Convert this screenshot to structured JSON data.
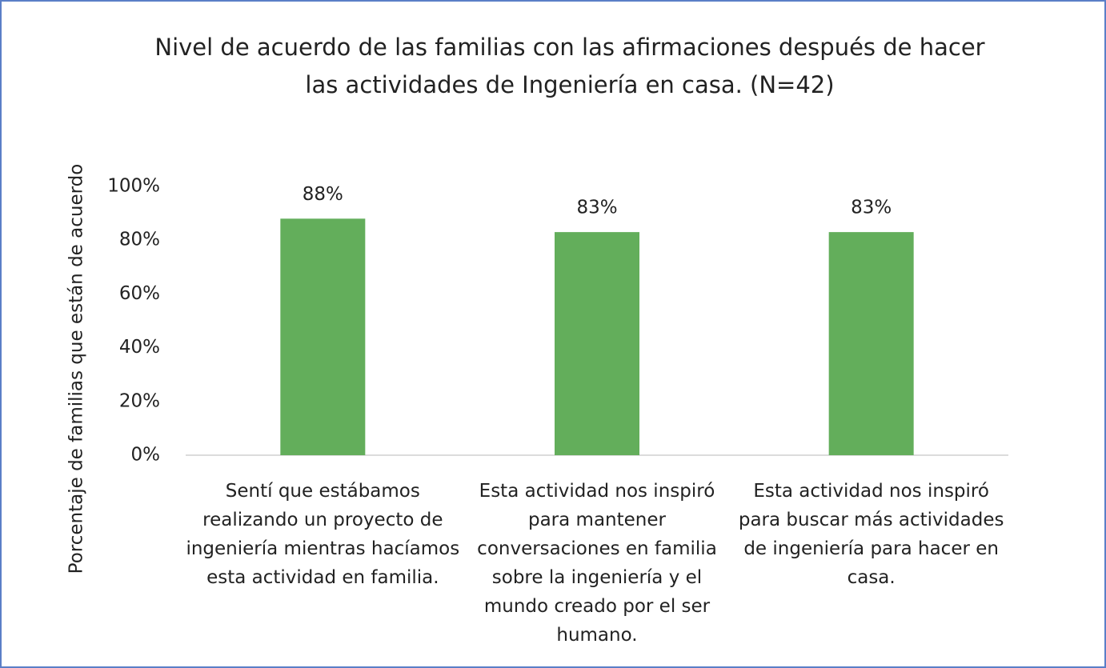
{
  "chart_data": {
    "type": "bar",
    "title": "Nivel de acuerdo de las familias con las afirmaciones después de hacer las actividades de Ingeniería en casa. (N=42)",
    "y_label": "Porcentaje de familias que están de acuerdo",
    "categories": [
      "Sentí que estábamos realizando un proyecto de ingeniería mientras hacíamos esta actividad en familia.",
      "Esta actividad nos inspiró para mantener conversaciones en familia sobre la ingeniería y el mundo creado por el ser humano.",
      "Esta actividad nos inspiró para buscar más actividades de ingeniería para hacer en casa."
    ],
    "values": [
      88,
      83,
      83
    ],
    "value_labels": [
      "88%",
      "83%",
      "83%"
    ],
    "color": "#63ae5b",
    "ylim": [
      0,
      100
    ],
    "yticks": [
      {
        "value": 0,
        "label": "0%"
      },
      {
        "value": 20,
        "label": "20%"
      },
      {
        "value": 40,
        "label": "40%"
      },
      {
        "value": 60,
        "label": "60%"
      },
      {
        "value": 80,
        "label": "80%"
      },
      {
        "value": 100,
        "label": "100%"
      }
    ],
    "grid": false
  }
}
